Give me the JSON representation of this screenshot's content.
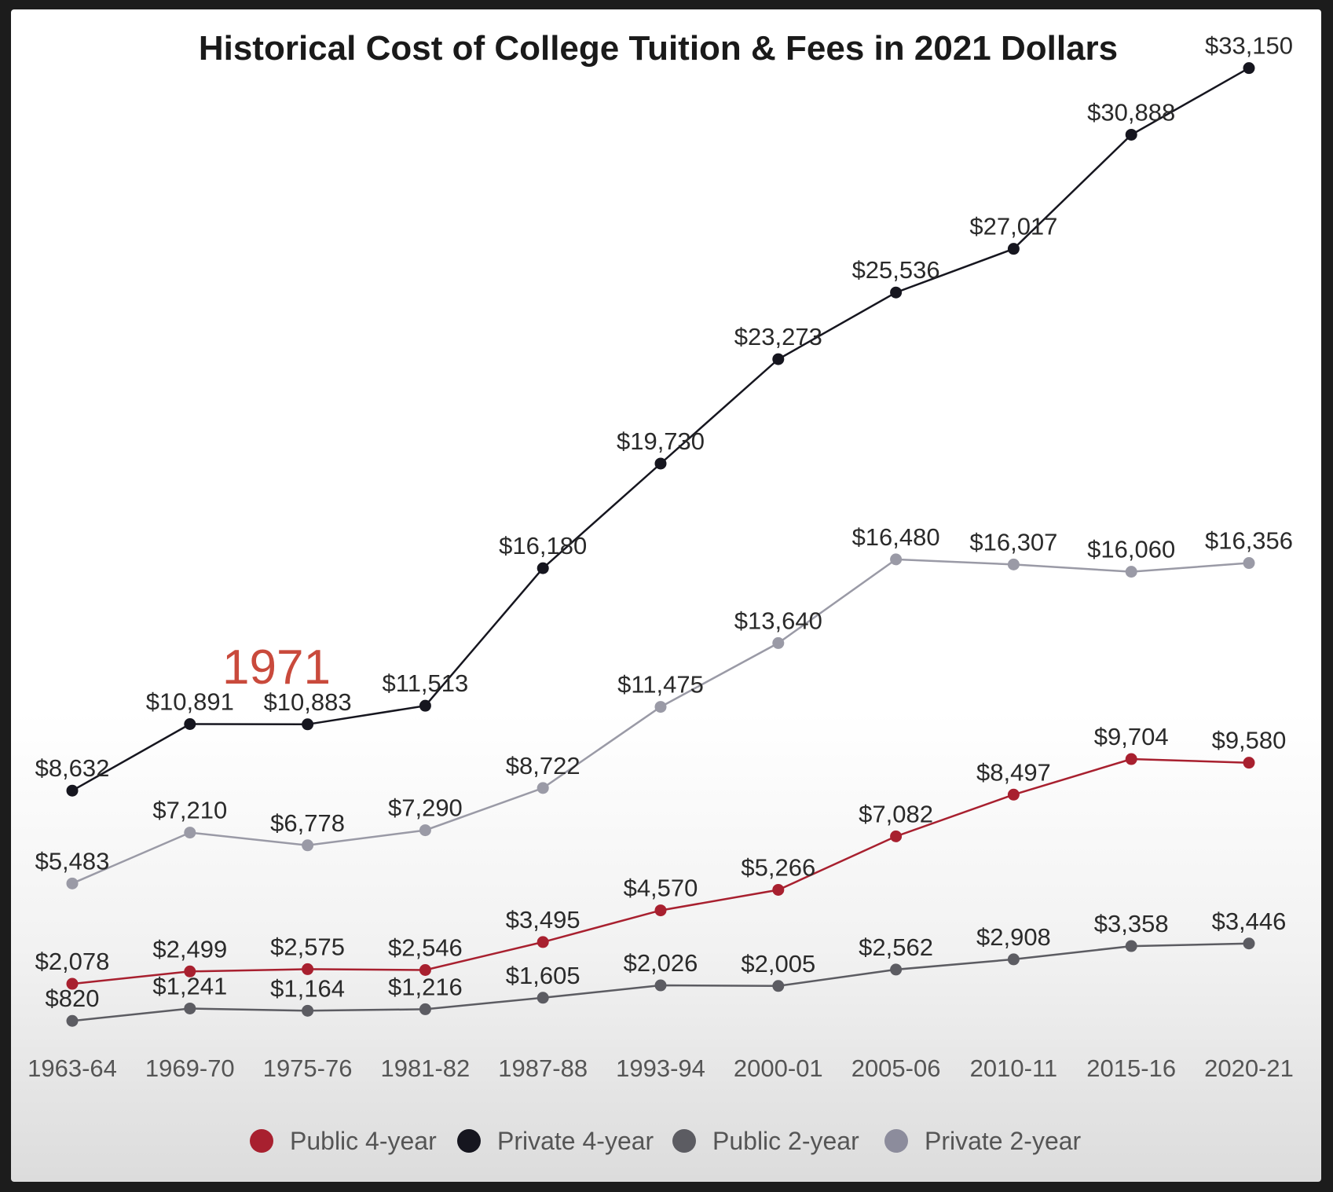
{
  "chart_data": {
    "type": "line",
    "title": "Historical Cost of College Tuition & Fees in 2021 Dollars",
    "annotation": "1971",
    "categories": [
      "1963-64",
      "1969-70",
      "1975-76",
      "1981-82",
      "1987-88",
      "1993-94",
      "2000-01",
      "2005-06",
      "2010-11",
      "2015-16",
      "2020-21"
    ],
    "series": [
      {
        "name": "Public 4-year",
        "color": "#a8202f",
        "values": [
          2078,
          2499,
          2575,
          2546,
          3495,
          4570,
          5266,
          7082,
          8497,
          9704,
          9580
        ],
        "labels": [
          "$2,078",
          "$2,499",
          "$2,575",
          "$2,546",
          "$3,495",
          "$4,570",
          "$5,266",
          "$7,082",
          "$8,497",
          "$9,704",
          "$9,580"
        ]
      },
      {
        "name": "Private 4-year",
        "color": "#16161f",
        "values": [
          8632,
          10891,
          10883,
          11513,
          16180,
          19730,
          23273,
          25536,
          27017,
          30888,
          33150
        ],
        "labels": [
          "$8,632",
          "$10,891",
          "$10,883",
          "$11,513",
          "$16,180",
          "$19,730",
          "$23,273",
          "$25,536",
          "$27,017",
          "$30,888",
          "$33,150"
        ]
      },
      {
        "name": "Public 2-year",
        "color": "#5c5c62",
        "values": [
          820,
          1241,
          1164,
          1216,
          1605,
          2026,
          2005,
          2562,
          2908,
          3358,
          3446
        ],
        "labels": [
          "$820",
          "$1,241",
          "$1,164",
          "$1,216",
          "$1,605",
          "$2,026",
          "$2,005",
          "$2,562",
          "$2,908",
          "$3,358",
          "$3,446"
        ]
      },
      {
        "name": "Private 2-year",
        "color": "#9a9aa6",
        "values": [
          5483,
          7210,
          6778,
          7290,
          8722,
          11475,
          13640,
          16480,
          16307,
          16060,
          16356
        ],
        "labels": [
          "$5,483",
          "$7,210",
          "$6,778",
          "$7,290",
          "$8,722",
          "$11,475",
          "$13,640",
          "$16,480",
          "$16,307",
          "$16,060",
          "$16,356"
        ]
      }
    ],
    "xlabel": "",
    "ylabel": "",
    "ylim": [
      0,
      34500
    ],
    "grid": false,
    "legend": "bottom"
  }
}
